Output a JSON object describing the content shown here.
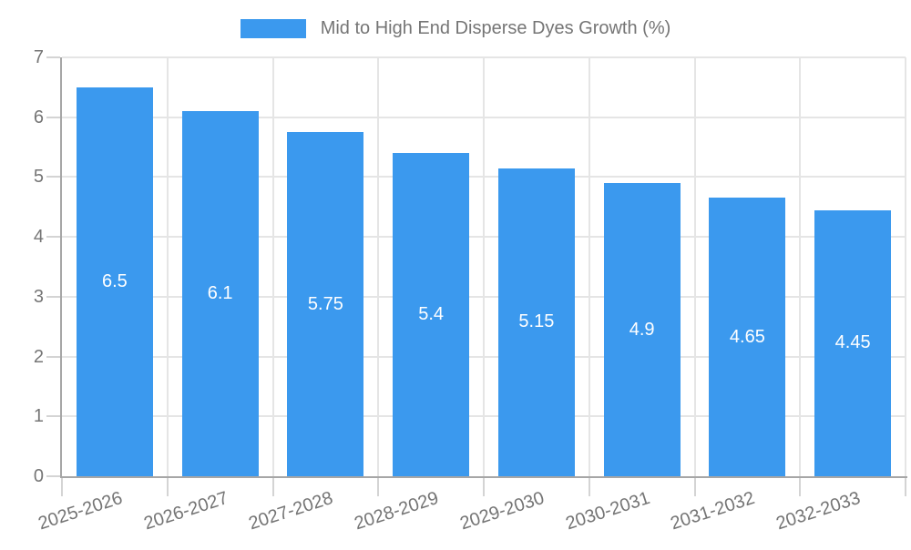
{
  "legend": {
    "label": "Mid to High End Disperse Dyes Growth (%)",
    "swatch_color": "#3B99EE"
  },
  "chart_data": {
    "type": "bar",
    "title": "",
    "series_name": "Mid to High End Disperse Dyes Growth (%)",
    "categories": [
      "2025-2026",
      "2026-2027",
      "2027-2028",
      "2028-2029",
      "2029-2030",
      "2030-2031",
      "2031-2032",
      "2032-2033"
    ],
    "values": [
      6.5,
      6.1,
      5.75,
      5.4,
      5.15,
      4.9,
      4.65,
      4.45
    ],
    "value_labels": [
      "6.5",
      "6.1",
      "5.75",
      "5.4",
      "5.15",
      "4.9",
      "4.65",
      "4.45"
    ],
    "xlabel": "",
    "ylabel": "",
    "ylim": [
      0,
      7
    ],
    "y_ticks": [
      0,
      1,
      2,
      3,
      4,
      5,
      6,
      7
    ],
    "grid": true,
    "legend_position": "top",
    "x_tick_rotation_deg": -18,
    "colors": {
      "bar": "#3B99EE",
      "grid": "#E5E5E5",
      "axis": "#A6A6A6",
      "tick": "#D4D4D4",
      "text": "#757575",
      "value_label": "#FFFFFF",
      "background": "#FFFFFF"
    }
  }
}
